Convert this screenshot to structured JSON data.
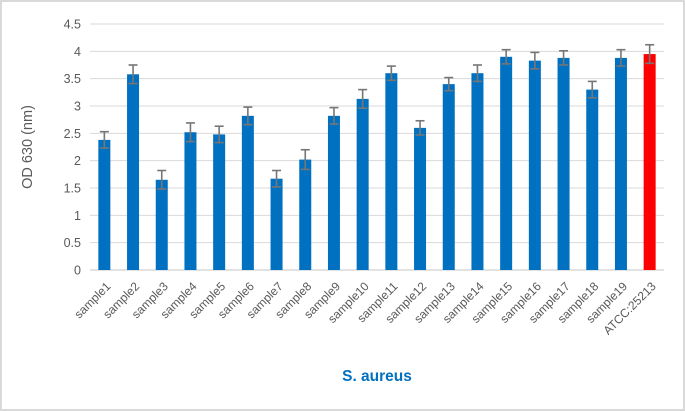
{
  "figure": {
    "background": "#ffffff",
    "border_color": "#d9d9d9"
  },
  "chart_data": {
    "type": "bar",
    "title": "",
    "xlabel": "S. aureus",
    "ylabel": "OD 630 (nm)",
    "categories": [
      "sample1",
      "sample2",
      "sample3",
      "sample4",
      "sample5",
      "sample6",
      "sample7",
      "sample8",
      "sample9",
      "sample10",
      "sample11",
      "sample12",
      "sample13",
      "sample14",
      "sample15",
      "sample16",
      "sample17",
      "sample18",
      "sample19",
      "ATCC:25213"
    ],
    "values": [
      2.38,
      3.58,
      1.65,
      2.52,
      2.48,
      2.82,
      1.67,
      2.02,
      2.82,
      3.13,
      3.6,
      2.6,
      3.4,
      3.6,
      3.9,
      3.83,
      3.88,
      3.3,
      3.88,
      3.95
    ],
    "errors": [
      0.15,
      0.17,
      0.17,
      0.17,
      0.15,
      0.16,
      0.15,
      0.18,
      0.15,
      0.17,
      0.13,
      0.13,
      0.12,
      0.15,
      0.13,
      0.15,
      0.13,
      0.15,
      0.15,
      0.17
    ],
    "ylim": [
      0,
      4.5
    ],
    "ytick_step": 0.5,
    "ytick_labels": [
      "0",
      "0.5",
      "1",
      "1.5",
      "2",
      "2.5",
      "3",
      "3.5",
      "4",
      "4.5"
    ],
    "grid": true,
    "legend": "none",
    "colors": {
      "bar_default": "#0070c0",
      "bar_highlight": "#ff0000",
      "highlight_index": 19,
      "error_bar": "#767676",
      "tick_label": "#595959",
      "y_title": "#595959",
      "x_title": "#0070c0",
      "gridline": "#d9d9d9"
    }
  }
}
